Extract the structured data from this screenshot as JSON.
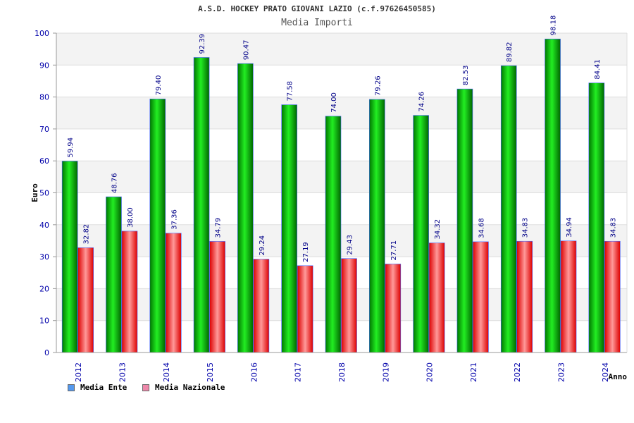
{
  "title": "A.S.D. HOCKEY PRATO GIOVANI LAZIO (c.f.97626450585)",
  "subtitle": "Media Importi",
  "colors": {
    "ente": "#00cc00",
    "nazionale": "#ff0000",
    "legend_ente": "#5599ee",
    "legend_nazionale": "#ee88aa",
    "axis_label": "#0000aa",
    "data_label": "#000088"
  },
  "legend": [
    {
      "label": "Media Ente"
    },
    {
      "label": "Media Nazionale"
    }
  ],
  "chart_data": {
    "type": "bar",
    "title": "A.S.D. HOCKEY PRATO GIOVANI LAZIO (c.f.97626450585)",
    "subtitle": "Media Importi",
    "xlabel": "Anno",
    "ylabel": "Euro",
    "ylim": [
      0,
      100
    ],
    "yticks": [
      "0",
      "10",
      "20",
      "30",
      "40",
      "50",
      "60",
      "70",
      "80",
      "90",
      "100"
    ],
    "categories": [
      "2012",
      "2013",
      "2014",
      "2015",
      "2016",
      "2017",
      "2018",
      "2019",
      "2020",
      "2021",
      "2022",
      "2023",
      "2024"
    ],
    "series": [
      {
        "name": "Media Ente",
        "values": [
          59.94,
          48.76,
          79.4,
          92.39,
          90.47,
          77.58,
          74.0,
          79.26,
          74.26,
          82.53,
          89.82,
          98.18,
          84.41
        ],
        "labels": [
          "59.94",
          "48.76",
          "79.40",
          "92.39",
          "90.47",
          "77.58",
          "74.00",
          "79.26",
          "74.26",
          "82.53",
          "89.82",
          "98.18",
          "84.41"
        ]
      },
      {
        "name": "Media Nazionale",
        "values": [
          32.82,
          38.0,
          37.36,
          34.79,
          29.24,
          27.19,
          29.43,
          27.71,
          34.32,
          34.68,
          34.83,
          34.94,
          34.83
        ],
        "labels": [
          "32.82",
          "38.00",
          "37.36",
          "34.79",
          "29.24",
          "27.19",
          "29.43",
          "27.71",
          "34.32",
          "34.68",
          "34.83",
          "34.94",
          "34.83"
        ]
      }
    ],
    "grid": true,
    "legend_position": "bottom-left"
  }
}
